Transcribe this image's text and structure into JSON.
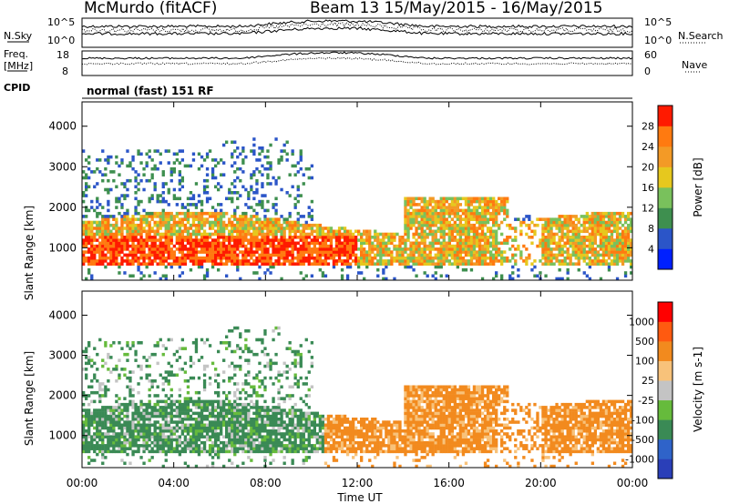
{
  "header": {
    "station": "McMurdo (fitACF)",
    "beam_info": "Beam 13 15/May/2015 - 16/May/2015"
  },
  "top_panels": {
    "nsky_label": "N.Sky",
    "nsky_ticks": [
      "10^5",
      "10^0"
    ],
    "nsearch_label": "N.Search",
    "nsearch_ticks": [
      "10^5",
      "10^0"
    ],
    "freq_label": "Freq.",
    "freq_unit": "[MHz]",
    "freq_ticks": [
      "18",
      "8"
    ],
    "nave_label": "Nave",
    "nave_ticks": [
      "60",
      "0"
    ],
    "cpid_label": "CPID",
    "cpid_text": "normal (fast) 151 RF"
  },
  "chart_data": [
    {
      "type": "heatmap",
      "name": "power",
      "ylabel": "Slant Range [km]",
      "xlabel": "Time UT",
      "xlim": [
        0,
        24
      ],
      "ylim": [
        200,
        4600
      ],
      "ytick_values": [
        1000,
        2000,
        3000,
        4000
      ],
      "ytick_labels": [
        "1000",
        "2000",
        "3000",
        "4000"
      ],
      "colorbar": {
        "label": "Power [dB]",
        "labels": [
          "4",
          "8",
          "12",
          "16",
          "20",
          "24",
          "28"
        ],
        "colors": [
          "#0020ff",
          "#2b55c8",
          "#3e8f4f",
          "#79c15c",
          "#e6c81e",
          "#f39a26",
          "#ff7a10",
          "#ff1a00"
        ]
      }
    },
    {
      "type": "heatmap",
      "name": "velocity",
      "ylabel": "Slant Range [km]",
      "xlabel": "Time UT",
      "xlim": [
        0,
        24
      ],
      "ylim": [
        200,
        4600
      ],
      "ytick_values": [
        1000,
        2000,
        3000,
        4000
      ],
      "ytick_labels": [
        "1000",
        "2000",
        "3000",
        "4000"
      ],
      "colorbar": {
        "label": "Velocity [m s-1]",
        "labels": [
          "1000",
          "500",
          "100",
          "25",
          "-25",
          "-100",
          "-500",
          "-1000"
        ],
        "colors": [
          "#2a3fb8",
          "#2f63c9",
          "#3a8a55",
          "#66bb3c",
          "#c4c4c4",
          "#f8c27a",
          "#f28a1e",
          "#ff5a10",
          "#ff0000"
        ]
      }
    }
  ],
  "xaxis": {
    "tick_values": [
      0,
      4,
      8,
      12,
      16,
      20,
      24
    ],
    "tick_labels": [
      "00:00",
      "04:00",
      "08:00",
      "12:00",
      "16:00",
      "20:00",
      "00:00"
    ],
    "label": "Time UT"
  }
}
